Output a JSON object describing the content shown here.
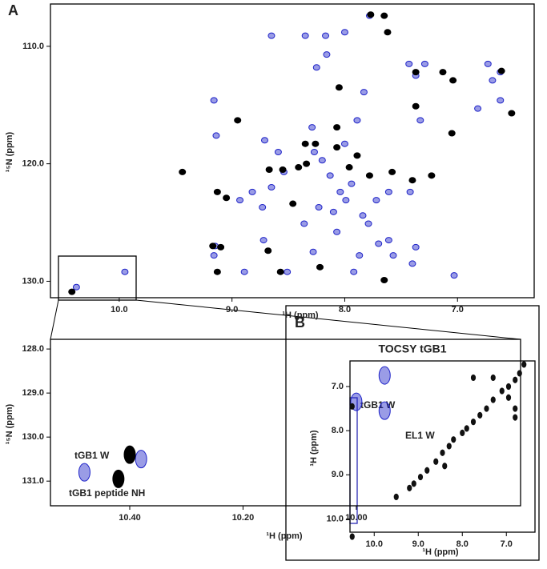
{
  "chart_data": [
    {
      "type": "scatter",
      "label": "A",
      "xlabel": "¹H (ppm)",
      "ylabel": "¹⁵N (ppm)",
      "xlim": [
        10.61,
        6.32
      ],
      "ylim": [
        106.4,
        131.4
      ],
      "xticks": [
        {
          "value": 10,
          "label": "10.0"
        },
        {
          "value": 9,
          "label": "9.0"
        },
        {
          "value": 8,
          "label": "8.0"
        },
        {
          "value": 7,
          "label": "7.0"
        }
      ],
      "yticks": [
        {
          "value": 110,
          "label": "110.0"
        },
        {
          "value": 120,
          "label": "120.0"
        },
        {
          "value": 130,
          "label": "130.0"
        }
      ],
      "series": [
        {
          "color": "#1f24c8",
          "x": [
            8.35,
            8.17,
            8.16,
            8.0,
            7.78,
            8.65,
            7.43,
            7.29,
            7.37,
            6.73,
            6.62,
            6.69,
            6.62,
            6.82,
            9.16,
            8.71,
            9.14,
            8.73,
            8.25,
            7.83,
            7.89,
            8.27,
            8.2,
            8.13,
            8.04,
            7.94,
            8.23,
            8.36,
            8.07,
            7.79,
            7.72,
            7.61,
            7.57,
            7.4,
            8.0,
            7.33,
            8.54,
            8.65,
            8.82,
            8.93,
            9.15,
            9.16,
            8.89,
            8.72,
            8.51,
            8.28,
            7.92,
            7.87,
            7.7,
            7.03,
            10.38,
            9.95,
            7.84,
            8.1,
            7.99,
            8.59,
            8.29,
            7.42,
            7.37,
            7.61
          ],
          "values": [
            109.1,
            109.1,
            110.7,
            108.8,
            107.4,
            109.1,
            111.5,
            111.5,
            112.5,
            111.5,
            112.2,
            112.9,
            114.6,
            115.3,
            114.6,
            118.0,
            117.6,
            123.7,
            111.8,
            113.9,
            116.3,
            119.0,
            119.7,
            121.0,
            122.4,
            121.7,
            123.7,
            125.1,
            125.8,
            125.1,
            123.1,
            126.5,
            127.8,
            128.5,
            118.3,
            116.3,
            120.7,
            122.0,
            122.4,
            123.1,
            127.0,
            127.8,
            129.2,
            126.5,
            129.2,
            127.5,
            129.2,
            127.8,
            126.8,
            129.5,
            130.5,
            129.2,
            124.4,
            124.1,
            123.1,
            119.0,
            116.9,
            122.4,
            127.1,
            122.4
          ]
        },
        {
          "color": "#000000",
          "x": [
            7.65,
            7.62,
            7.77,
            7.37,
            7.13,
            6.61,
            7.04,
            6.52,
            7.05,
            7.37,
            8.05,
            8.07,
            8.35,
            8.26,
            8.07,
            7.89,
            7.58,
            7.4,
            9.44,
            8.95,
            9.13,
            9.05,
            8.67,
            8.55,
            8.41,
            7.96,
            7.78,
            8.34,
            9.17,
            9.1,
            8.68,
            8.57,
            9.13,
            8.46,
            8.22,
            7.23,
            7.65,
            10.42
          ],
          "values": [
            107.4,
            108.8,
            107.3,
            112.2,
            112.2,
            112.1,
            112.9,
            115.7,
            117.4,
            115.1,
            113.5,
            116.9,
            118.3,
            118.3,
            118.6,
            119.3,
            120.7,
            121.4,
            120.7,
            116.3,
            122.4,
            122.9,
            120.5,
            120.5,
            120.3,
            120.3,
            121.0,
            120.0,
            127.0,
            127.1,
            127.4,
            129.2,
            129.2,
            123.4,
            128.8,
            121.0,
            129.9,
            130.9
          ]
        }
      ]
    },
    {
      "type": "scatter",
      "xlabel": "¹H (ppm)",
      "ylabel": "¹⁵N (ppm)",
      "xlim": [
        10.54,
        9.71
      ],
      "ylim": [
        127.78,
        131.56
      ],
      "xticks": [
        {
          "value": 10.4,
          "label": "10.40"
        },
        {
          "value": 10.2,
          "label": "10.20"
        },
        {
          "value": 10,
          "label": "10.00"
        }
      ],
      "yticks": [
        {
          "value": 128,
          "label": "128.0"
        },
        {
          "value": 129,
          "label": "129.0"
        },
        {
          "value": 130,
          "label": "130.0"
        },
        {
          "value": 131,
          "label": "131.0"
        }
      ],
      "annotations": [
        "tGB1 W",
        "EL1 W",
        "tGB1 peptide NH"
      ],
      "series": [
        {
          "color": "#1f24c8",
          "x": [
            10.38,
            10.48,
            9.95,
            9.95,
            10.0
          ],
          "values": [
            130.5,
            130.8,
            129.4,
            128.6,
            129.2
          ]
        },
        {
          "color": "#000000",
          "x": [
            10.42,
            10.4
          ],
          "values": [
            130.95,
            130.4
          ]
        }
      ]
    },
    {
      "type": "scatter",
      "label": "B",
      "title": "TOCSY tGB1",
      "xlabel": "¹H (ppm)",
      "ylabel": "¹H (ppm)",
      "xlim": [
        10.55,
        6.35
      ],
      "ylim": [
        6.42,
        10.3
      ],
      "xticks": [
        {
          "value": 10,
          "label": "10.0"
        },
        {
          "value": 9,
          "label": "9.0"
        },
        {
          "value": 8,
          "label": "8.0"
        },
        {
          "value": 7,
          "label": "7.0"
        }
      ],
      "yticks": [
        {
          "value": 7,
          "label": "7.0"
        },
        {
          "value": 8,
          "label": "8.0"
        },
        {
          "value": 9,
          "label": "9.0"
        },
        {
          "value": 10,
          "label": "10.0"
        }
      ],
      "annotations": [
        "tGB1 W"
      ],
      "series": [
        {
          "color": "#111111",
          "x": [
            9.5,
            9.2,
            9.1,
            8.95,
            8.8,
            8.6,
            8.45,
            8.3,
            8.2,
            8.0,
            7.9,
            7.75,
            7.6,
            7.45,
            7.3,
            7.1,
            6.95,
            6.8,
            6.7,
            6.6,
            7.75,
            7.3,
            6.8,
            6.8,
            6.95,
            8.4,
            10.5,
            10.5
          ],
          "values": [
            9.5,
            9.3,
            9.2,
            9.05,
            8.9,
            8.7,
            8.5,
            8.35,
            8.2,
            8.05,
            7.95,
            7.8,
            7.65,
            7.5,
            7.3,
            7.1,
            7.0,
            6.85,
            6.7,
            6.5,
            6.8,
            6.8,
            7.5,
            7.7,
            7.25,
            8.8,
            7.45,
            10.4
          ]
        }
      ]
    }
  ]
}
